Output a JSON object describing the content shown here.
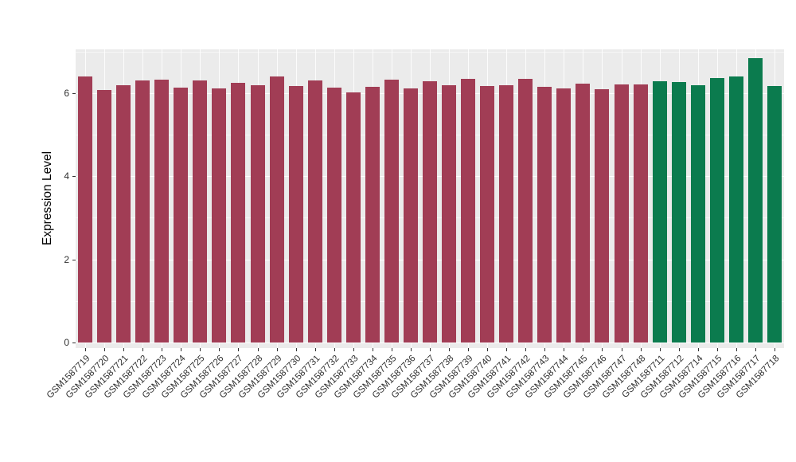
{
  "figure": {
    "background": "#ffffff",
    "panel_background": "#EBEBEB",
    "gridline_color": "#ffffff",
    "axis_text_color": "#303030"
  },
  "chart_data": {
    "type": "bar",
    "title": "",
    "xlabel": "",
    "ylabel": "Expression Level",
    "ylim": [
      0,
      7.05
    ],
    "yticks": [
      0,
      2,
      4,
      6
    ],
    "yticks_minor": [
      1,
      3,
      5,
      7
    ],
    "grid": true,
    "legend_position": "none",
    "bar_group_colors": {
      "group_1": "#A13D55",
      "group_2": "#0B7B4E"
    },
    "categories": [
      "GSM1587719",
      "GSM1587720",
      "GSM1587721",
      "GSM1587722",
      "GSM1587723",
      "GSM1587724",
      "GSM1587725",
      "GSM1587726",
      "GSM1587727",
      "GSM1587728",
      "GSM1587729",
      "GSM1587730",
      "GSM1587731",
      "GSM1587732",
      "GSM1587733",
      "GSM1587734",
      "GSM1587735",
      "GSM1587736",
      "GSM1587737",
      "GSM1587738",
      "GSM1587739",
      "GSM1587740",
      "GSM1587741",
      "GSM1587742",
      "GSM1587743",
      "GSM1587744",
      "GSM1587745",
      "GSM1587746",
      "GSM1587747",
      "GSM1587748",
      "GSM1587711",
      "GSM1587712",
      "GSM1587714",
      "GSM1587715",
      "GSM1587716",
      "GSM1587717",
      "GSM1587718"
    ],
    "values": [
      6.4,
      6.08,
      6.19,
      6.31,
      6.33,
      6.13,
      6.31,
      6.11,
      6.25,
      6.19,
      6.4,
      6.17,
      6.31,
      6.13,
      6.02,
      6.15,
      6.33,
      6.11,
      6.29,
      6.19,
      6.35,
      6.17,
      6.19,
      6.35,
      6.15,
      6.11,
      6.23,
      6.09,
      6.21,
      6.21,
      6.29,
      6.27,
      6.19,
      6.37,
      6.41,
      6.85,
      6.17
    ],
    "bar_colors": [
      "#A13D55",
      "#A13D55",
      "#A13D55",
      "#A13D55",
      "#A13D55",
      "#A13D55",
      "#A13D55",
      "#A13D55",
      "#A13D55",
      "#A13D55",
      "#A13D55",
      "#A13D55",
      "#A13D55",
      "#A13D55",
      "#A13D55",
      "#A13D55",
      "#A13D55",
      "#A13D55",
      "#A13D55",
      "#A13D55",
      "#A13D55",
      "#A13D55",
      "#A13D55",
      "#A13D55",
      "#A13D55",
      "#A13D55",
      "#A13D55",
      "#A13D55",
      "#A13D55",
      "#A13D55",
      "#0B7B4E",
      "#0B7B4E",
      "#0B7B4E",
      "#0B7B4E",
      "#0B7B4E",
      "#0B7B4E",
      "#0B7B4E"
    ]
  }
}
